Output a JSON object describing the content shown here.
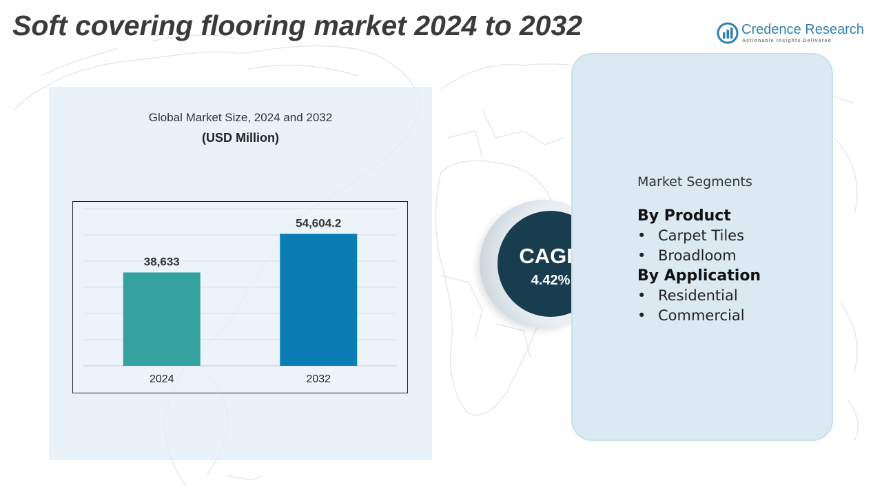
{
  "title": "Soft covering flooring market 2024 to 2032",
  "brand": {
    "name": "Credence Research",
    "tagline": "Actionable Insights Delivered",
    "logo_icon": "bar-chart-magnifier-icon",
    "color": "#2f7fb0"
  },
  "chart": {
    "title": "Global Market Size, 2024 and 2032",
    "unit": "(USD Million)"
  },
  "chart_data": {
    "type": "bar",
    "categories": [
      "2024",
      "2032"
    ],
    "values": [
      38633,
      54604.2
    ],
    "data_labels": [
      "38,633",
      "54,604.2"
    ],
    "colors": [
      "#35a29f",
      "#0a7db4"
    ],
    "ylim": [
      0,
      65000
    ],
    "grid": true,
    "xlabel": "",
    "ylabel": ""
  },
  "cagr": {
    "label": "CAGR",
    "value": "4.42%",
    "color": "#173d4f"
  },
  "segments": {
    "heading": "Market Segments",
    "groups": [
      {
        "title": "By Product",
        "items": [
          "Carpet Tiles",
          "Broadloom"
        ]
      },
      {
        "title": "By Application",
        "items": [
          "Residential",
          "Commercial"
        ]
      }
    ],
    "bullet": "•"
  }
}
